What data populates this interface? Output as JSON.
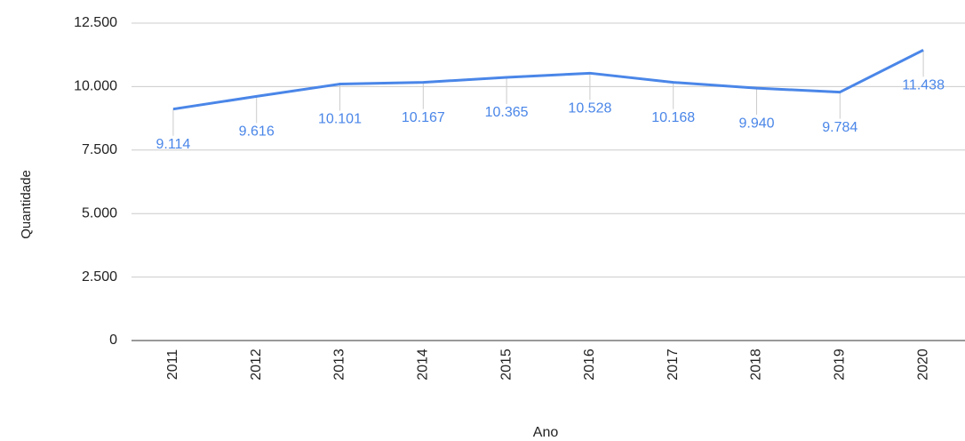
{
  "chart_data": {
    "type": "line",
    "x_label": "Ano",
    "y_label": "Quantidade",
    "categories": [
      "2011",
      "2012",
      "2013",
      "2014",
      "2015",
      "2016",
      "2017",
      "2018",
      "2019",
      "2020"
    ],
    "series": [
      {
        "name": "Quantidade",
        "color": "#4a86e8",
        "values": [
          9114,
          9616,
          10101,
          10167,
          10365,
          10528,
          10168,
          9940,
          9784,
          11438
        ],
        "value_labels": [
          "9.114",
          "9.616",
          "10.101",
          "10.167",
          "10.365",
          "10.528",
          "10.168",
          "9.940",
          "9.784",
          "11.438"
        ]
      }
    ],
    "ylim": [
      0,
      12500
    ],
    "yticks": [
      0,
      {
        "value": 2500,
        "label": "2.500"
      },
      {
        "value": 5000,
        "label": "5.000"
      },
      {
        "value": 7500,
        "label": "7.500"
      },
      {
        "value": 10000,
        "label": "10.000"
      },
      {
        "value": 12500,
        "label": "12.500"
      }
    ],
    "grid": true
  }
}
